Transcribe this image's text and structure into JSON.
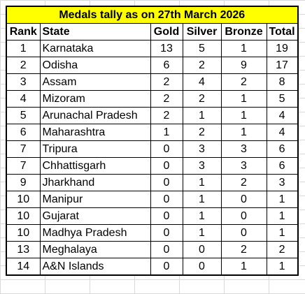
{
  "title": "Medals tally as on 27th March 2026",
  "headers": {
    "rank": "Rank",
    "state": "State",
    "gold": "Gold",
    "silver": "Silver",
    "bronze": "Bronze",
    "total": "Total"
  },
  "rows": [
    {
      "rank": "1",
      "state": "Karnataka",
      "gold": "13",
      "silver": "5",
      "bronze": "1",
      "total": "19"
    },
    {
      "rank": "2",
      "state": "Odisha",
      "gold": "6",
      "silver": "2",
      "bronze": "9",
      "total": "17"
    },
    {
      "rank": "3",
      "state": "Assam",
      "gold": "2",
      "silver": "4",
      "bronze": "2",
      "total": "8"
    },
    {
      "rank": "4",
      "state": "Mizoram",
      "gold": "2",
      "silver": "2",
      "bronze": "1",
      "total": "5"
    },
    {
      "rank": "5",
      "state": "Arunachal Pradesh",
      "gold": "2",
      "silver": "1",
      "bronze": "1",
      "total": "4"
    },
    {
      "rank": "6",
      "state": "Maharashtra",
      "gold": "1",
      "silver": "2",
      "bronze": "1",
      "total": "4"
    },
    {
      "rank": "7",
      "state": "Tripura",
      "gold": "0",
      "silver": "3",
      "bronze": "3",
      "total": "6"
    },
    {
      "rank": "7",
      "state": "Chhattisgarh",
      "gold": "0",
      "silver": "3",
      "bronze": "3",
      "total": "6"
    },
    {
      "rank": "9",
      "state": "Jharkhand",
      "gold": "0",
      "silver": "1",
      "bronze": "2",
      "total": "3"
    },
    {
      "rank": "10",
      "state": "Manipur",
      "gold": "0",
      "silver": "1",
      "bronze": "0",
      "total": "1"
    },
    {
      "rank": "10",
      "state": "Gujarat",
      "gold": "0",
      "silver": "1",
      "bronze": "0",
      "total": "1"
    },
    {
      "rank": "10",
      "state": "Madhya Pradesh",
      "gold": "0",
      "silver": "1",
      "bronze": "0",
      "total": "1"
    },
    {
      "rank": "13",
      "state": "Meghalaya",
      "gold": "0",
      "silver": "0",
      "bronze": "2",
      "total": "2"
    },
    {
      "rank": "14",
      "state": "A&N Islands",
      "gold": "0",
      "silver": "0",
      "bronze": "1",
      "total": "1"
    }
  ],
  "colors": {
    "title_fill": "#ffff00",
    "gridline": "#d9d9d9",
    "border": "#000000"
  }
}
